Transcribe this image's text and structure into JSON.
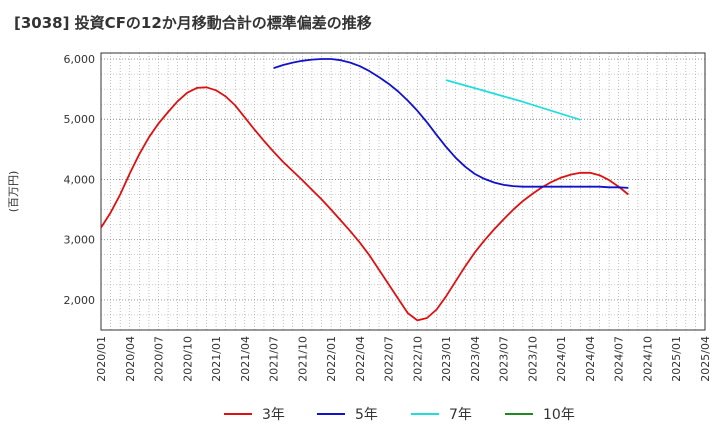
{
  "chart_data": {
    "type": "line",
    "title": "[3038]  投資CFの12か月移動合計の標準偏差の推移",
    "ylabel": "(百万円)",
    "xlabel": "",
    "ylim": [
      1500,
      6100
    ],
    "yticks": [
      2000,
      3000,
      4000,
      5000,
      6000
    ],
    "ytick_labels": [
      "2,000",
      "3,000",
      "4,000",
      "5,000",
      "6,000"
    ],
    "xticks": [
      "2020-01",
      "2020-04",
      "2020-07",
      "2020-10",
      "2021-01",
      "2021-04",
      "2021-07",
      "2021-10",
      "2022-01",
      "2022-04",
      "2022-07",
      "2022-10",
      "2023-01",
      "2023-04",
      "2023-07",
      "2023-10",
      "2024-01",
      "2024-04",
      "2024-07",
      "2024-10",
      "2025-01",
      "2025-04"
    ],
    "xtick_labels": [
      "2020/01",
      "2020/04",
      "2020/07",
      "2020/10",
      "2021/01",
      "2021/04",
      "2021/07",
      "2021/10",
      "2022/01",
      "2022/04",
      "2022/07",
      "2022/10",
      "2023/01",
      "2023/04",
      "2023/07",
      "2023/10",
      "2024/01",
      "2024/04",
      "2024/07",
      "2024/10",
      "2025/01",
      "2025/04"
    ],
    "grid": true,
    "legend_position": "bottom",
    "series": [
      {
        "name": "3年",
        "color": "#dd1111",
        "points": [
          [
            "2020-01",
            3200
          ],
          [
            "2020-02",
            3450
          ],
          [
            "2020-03",
            3750
          ],
          [
            "2020-04",
            4100
          ],
          [
            "2020-05",
            4420
          ],
          [
            "2020-06",
            4700
          ],
          [
            "2020-07",
            4930
          ],
          [
            "2020-08",
            5120
          ],
          [
            "2020-09",
            5300
          ],
          [
            "2020-10",
            5440
          ],
          [
            "2020-11",
            5520
          ],
          [
            "2020-12",
            5530
          ],
          [
            "2021-01",
            5480
          ],
          [
            "2021-02",
            5380
          ],
          [
            "2021-03",
            5230
          ],
          [
            "2021-04",
            5030
          ],
          [
            "2021-05",
            4830
          ],
          [
            "2021-06",
            4640
          ],
          [
            "2021-07",
            4460
          ],
          [
            "2021-08",
            4290
          ],
          [
            "2021-09",
            4140
          ],
          [
            "2021-10",
            3990
          ],
          [
            "2021-11",
            3830
          ],
          [
            "2021-12",
            3670
          ],
          [
            "2022-01",
            3500
          ],
          [
            "2022-02",
            3320
          ],
          [
            "2022-03",
            3140
          ],
          [
            "2022-04",
            2950
          ],
          [
            "2022-05",
            2740
          ],
          [
            "2022-06",
            2500
          ],
          [
            "2022-07",
            2260
          ],
          [
            "2022-08",
            2020
          ],
          [
            "2022-09",
            1780
          ],
          [
            "2022-10",
            1660
          ],
          [
            "2022-11",
            1700
          ],
          [
            "2022-12",
            1840
          ],
          [
            "2023-01",
            2060
          ],
          [
            "2023-02",
            2310
          ],
          [
            "2023-03",
            2560
          ],
          [
            "2023-04",
            2790
          ],
          [
            "2023-05",
            2990
          ],
          [
            "2023-06",
            3170
          ],
          [
            "2023-07",
            3340
          ],
          [
            "2023-08",
            3500
          ],
          [
            "2023-09",
            3640
          ],
          [
            "2023-10",
            3760
          ],
          [
            "2023-11",
            3870
          ],
          [
            "2023-12",
            3960
          ],
          [
            "2024-01",
            4030
          ],
          [
            "2024-02",
            4080
          ],
          [
            "2024-03",
            4110
          ],
          [
            "2024-04",
            4110
          ],
          [
            "2024-05",
            4070
          ],
          [
            "2024-06",
            3990
          ],
          [
            "2024-07",
            3880
          ],
          [
            "2024-08",
            3750
          ]
        ]
      },
      {
        "name": "5年",
        "color": "#1111cc",
        "points": [
          [
            "2021-07",
            5850
          ],
          [
            "2021-08",
            5900
          ],
          [
            "2021-09",
            5940
          ],
          [
            "2021-10",
            5970
          ],
          [
            "2021-11",
            5990
          ],
          [
            "2021-12",
            6000
          ],
          [
            "2022-01",
            6000
          ],
          [
            "2022-02",
            5980
          ],
          [
            "2022-03",
            5940
          ],
          [
            "2022-04",
            5880
          ],
          [
            "2022-05",
            5800
          ],
          [
            "2022-06",
            5700
          ],
          [
            "2022-07",
            5590
          ],
          [
            "2022-08",
            5460
          ],
          [
            "2022-09",
            5310
          ],
          [
            "2022-10",
            5140
          ],
          [
            "2022-11",
            4950
          ],
          [
            "2022-12",
            4740
          ],
          [
            "2023-01",
            4540
          ],
          [
            "2023-02",
            4360
          ],
          [
            "2023-03",
            4210
          ],
          [
            "2023-04",
            4090
          ],
          [
            "2023-05",
            4010
          ],
          [
            "2023-06",
            3950
          ],
          [
            "2023-07",
            3910
          ],
          [
            "2023-08",
            3890
          ],
          [
            "2023-09",
            3880
          ],
          [
            "2023-10",
            3880
          ],
          [
            "2023-11",
            3880
          ],
          [
            "2023-12",
            3880
          ],
          [
            "2024-01",
            3880
          ],
          [
            "2024-02",
            3880
          ],
          [
            "2024-03",
            3880
          ],
          [
            "2024-04",
            3880
          ],
          [
            "2024-05",
            3880
          ],
          [
            "2024-06",
            3870
          ],
          [
            "2024-07",
            3870
          ],
          [
            "2024-08",
            3860
          ]
        ]
      },
      {
        "name": "7年",
        "color": "#22dddd",
        "points": [
          [
            "2023-01",
            5650
          ],
          [
            "2023-03",
            5560
          ],
          [
            "2023-05",
            5470
          ],
          [
            "2023-07",
            5380
          ],
          [
            "2023-09",
            5290
          ],
          [
            "2023-11",
            5190
          ],
          [
            "2024-01",
            5090
          ],
          [
            "2024-03",
            4990
          ]
        ]
      },
      {
        "name": "10年",
        "color": "#228822",
        "points": []
      }
    ]
  }
}
